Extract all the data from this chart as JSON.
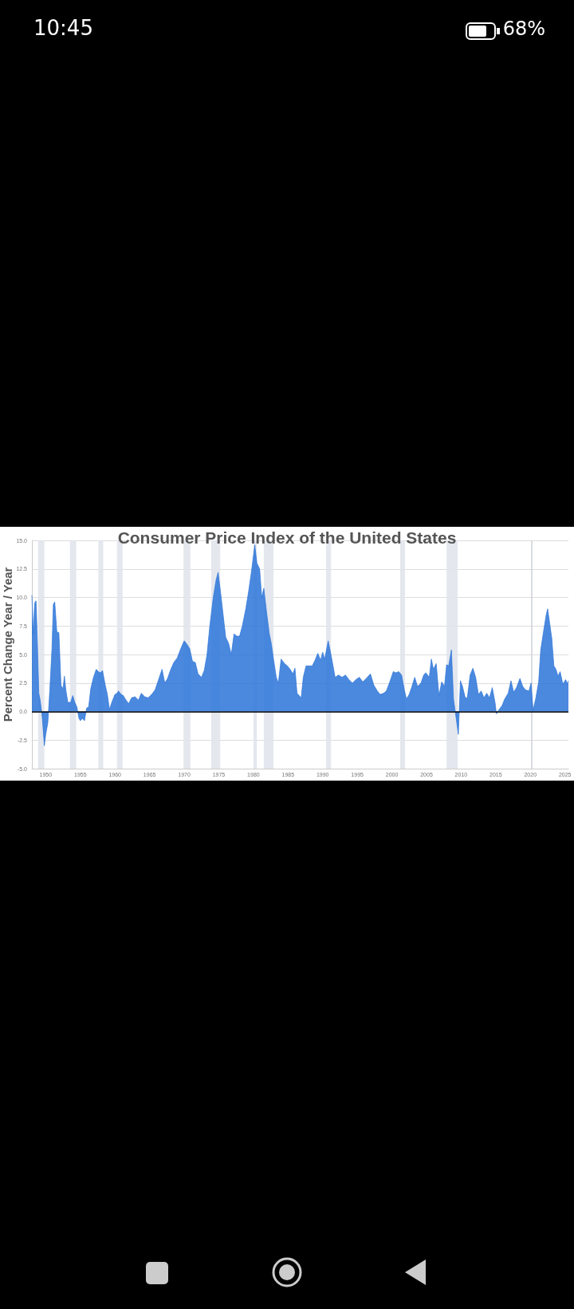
{
  "chart_data": {
    "type": "area",
    "title": "Consumer Price Index of the United States",
    "ylabel": "Percent Change Year / Year",
    "annotations": [
      "10:45",
      "68%"
    ],
    "x": [
      1948.0,
      1948.2,
      1948.4,
      1948.6,
      1948.8,
      1949.0,
      1949.2,
      1949.5,
      1949.8,
      1950.0,
      1950.3,
      1950.6,
      1950.9,
      1951.1,
      1951.3,
      1951.6,
      1951.9,
      1952.2,
      1952.5,
      1952.7,
      1952.9,
      1953.2,
      1953.6,
      1953.9,
      1954.2,
      1954.5,
      1954.8,
      1955.0,
      1955.3,
      1955.6,
      1955.9,
      1956.2,
      1956.5,
      1956.9,
      1957.3,
      1957.6,
      1957.9,
      1958.2,
      1958.6,
      1958.9,
      1959.2,
      1959.6,
      1960.0,
      1960.3,
      1960.5,
      1960.9,
      1961.2,
      1961.6,
      1962.0,
      1962.4,
      1962.9,
      1963.4,
      1963.8,
      1964.3,
      1964.8,
      1965.3,
      1965.8,
      1966.3,
      1966.8,
      1967.2,
      1967.6,
      1968.0,
      1968.5,
      1969.0,
      1969.5,
      1970.0,
      1970.4,
      1970.8,
      1971.2,
      1971.6,
      1972.0,
      1972.5,
      1972.9,
      1973.3,
      1973.7,
      1974.2,
      1974.6,
      1974.9,
      1975.3,
      1975.6,
      1976.0,
      1976.4,
      1976.8,
      1977.2,
      1977.6,
      1978.0,
      1978.4,
      1978.9,
      1979.3,
      1979.7,
      1980.2,
      1980.5,
      1980.9,
      1981.2,
      1981.5,
      1981.9,
      1982.3,
      1982.6,
      1982.9,
      1983.3,
      1983.6,
      1984.0,
      1984.5,
      1984.9,
      1985.3,
      1985.7,
      1986.0,
      1986.3,
      1986.9,
      1987.2,
      1987.6,
      1988.0,
      1988.5,
      1988.9,
      1989.3,
      1989.7,
      1990.0,
      1990.3,
      1990.8,
      1991.1,
      1991.5,
      1991.8,
      1992.3,
      1992.8,
      1993.3,
      1993.8,
      1994.3,
      1994.8,
      1995.3,
      1995.8,
      1996.3,
      1996.9,
      1997.4,
      1997.9,
      1998.3,
      1998.8,
      1999.2,
      1999.7,
      2000.2,
      2000.6,
      2001.0,
      2001.4,
      2001.8,
      2002.1,
      2002.5,
      2002.9,
      2003.3,
      2003.7,
      2004.2,
      2004.6,
      2004.9,
      2005.4,
      2005.7,
      2006.0,
      2006.4,
      2006.8,
      2007.2,
      2007.6,
      2007.9,
      2008.2,
      2008.6,
      2008.9,
      2009.2,
      2009.6,
      2009.9,
      2010.2,
      2010.6,
      2010.9,
      2011.3,
      2011.7,
      2012.1,
      2012.5,
      2012.9,
      2013.3,
      2013.7,
      2014.1,
      2014.5,
      2014.9,
      2015.1,
      2015.5,
      2015.9,
      2016.3,
      2016.8,
      2017.2,
      2017.6,
      2018.0,
      2018.5,
      2018.9,
      2019.3,
      2019.8,
      2020.1,
      2020.4,
      2020.8,
      2021.2,
      2021.5,
      2021.9,
      2022.3,
      2022.5,
      2022.8,
      2023.1,
      2023.4,
      2023.7,
      2024.0,
      2024.3,
      2024.7,
      2025.1,
      2025.4,
      2025.5
    ],
    "series": [
      {
        "color": "#2b74d9",
        "values": [
          10.2,
          6.8,
          9.5,
          9.7,
          6.0,
          1.6,
          1.0,
          -0.5,
          -3.0,
          -2.0,
          -1.0,
          2.0,
          5.5,
          9.4,
          9.6,
          7.0,
          6.9,
          2.3,
          2.0,
          3.1,
          1.9,
          0.8,
          0.8,
          1.4,
          0.8,
          0.4,
          -0.6,
          -0.8,
          -0.6,
          -0.8,
          0.3,
          0.4,
          2.0,
          3.0,
          3.7,
          3.5,
          3.4,
          3.6,
          2.3,
          1.5,
          0.2,
          0.9,
          1.5,
          1.6,
          1.8,
          1.5,
          1.4,
          1.0,
          0.7,
          1.2,
          1.3,
          1.0,
          1.6,
          1.3,
          1.2,
          1.5,
          1.9,
          2.8,
          3.7,
          2.5,
          2.9,
          3.6,
          4.3,
          4.7,
          5.5,
          6.2,
          5.9,
          5.5,
          4.4,
          4.3,
          3.3,
          3.0,
          3.6,
          5.0,
          7.5,
          10.0,
          11.5,
          12.2,
          10.2,
          8.6,
          6.5,
          6.0,
          5.0,
          6.8,
          6.6,
          6.6,
          7.5,
          9.0,
          10.5,
          12.2,
          14.6,
          13.0,
          12.5,
          10.0,
          10.8,
          8.7,
          6.8,
          5.9,
          4.6,
          3.0,
          2.5,
          4.6,
          4.2,
          4.0,
          3.7,
          3.3,
          3.8,
          1.6,
          1.2,
          3.0,
          4.0,
          4.0,
          4.0,
          4.5,
          5.1,
          4.5,
          5.2,
          4.6,
          6.2,
          5.3,
          4.0,
          3.0,
          3.2,
          3.0,
          3.2,
          2.8,
          2.5,
          2.8,
          3.0,
          2.6,
          2.9,
          3.3,
          2.3,
          1.8,
          1.5,
          1.6,
          1.8,
          2.6,
          3.5,
          3.4,
          3.5,
          3.2,
          1.9,
          1.1,
          1.5,
          2.2,
          3.0,
          2.2,
          2.5,
          3.2,
          3.4,
          3.0,
          4.6,
          3.7,
          4.2,
          1.4,
          2.6,
          2.2,
          4.1,
          4.0,
          5.4,
          1.1,
          -0.2,
          -2.0,
          2.7,
          2.2,
          1.2,
          1.2,
          3.2,
          3.8,
          3.0,
          1.5,
          1.8,
          1.2,
          1.6,
          1.2,
          2.1,
          0.8,
          -0.2,
          0.2,
          0.5,
          1.1,
          1.6,
          2.7,
          1.7,
          2.1,
          2.9,
          2.2,
          1.9,
          1.8,
          2.5,
          0.1,
          1.2,
          2.6,
          5.4,
          7.0,
          8.5,
          9.0,
          7.7,
          6.4,
          4.0,
          3.7,
          3.1,
          3.5,
          2.4,
          2.8,
          2.4,
          2.7
        ]
      }
    ],
    "xlim": [
      1948,
      2025.5
    ],
    "xticks": [
      1950,
      1955,
      1960,
      1965,
      1970,
      1975,
      1980,
      1985,
      1990,
      1995,
      2000,
      2005,
      2010,
      2015,
      2020,
      2025
    ],
    "ylim": [
      -5,
      15
    ],
    "yticks": [
      {
        "value": -5,
        "label": "-5.0"
      },
      {
        "value": -2.5,
        "label": "-2.5"
      },
      {
        "value": 0,
        "label": "0.0"
      },
      {
        "value": 2.5,
        "label": "2.5"
      },
      {
        "value": 5,
        "label": "5.0"
      },
      {
        "value": 7.5,
        "label": "7.5"
      },
      {
        "value": 10,
        "label": "10.0"
      },
      {
        "value": 12.5,
        "label": "12.5"
      },
      {
        "value": 15,
        "label": "15.0"
      }
    ],
    "grid": "y",
    "marker": "none",
    "ref_lines": [
      {
        "axis": "y",
        "value": 0,
        "color": "#000000"
      }
    ],
    "bands": [
      {
        "axis": "x",
        "from": 1948.9,
        "to": 1949.8,
        "color": "#e1e4ec"
      },
      {
        "axis": "x",
        "from": 1953.5,
        "to": 1954.4,
        "color": "#e1e4ec"
      },
      {
        "axis": "x",
        "from": 1957.6,
        "to": 1958.3,
        "color": "#e1e4ec"
      },
      {
        "axis": "x",
        "from": 1960.3,
        "to": 1961.1,
        "color": "#e1e4ec"
      },
      {
        "axis": "x",
        "from": 1969.9,
        "to": 1970.9,
        "color": "#e1e4ec"
      },
      {
        "axis": "x",
        "from": 1973.9,
        "to": 1975.2,
        "color": "#e1e4ec"
      },
      {
        "axis": "x",
        "from": 1980.0,
        "to": 1980.5,
        "color": "#e1e4ec"
      },
      {
        "axis": "x",
        "from": 1981.5,
        "to": 1982.9,
        "color": "#e1e4ec"
      },
      {
        "axis": "x",
        "from": 1990.5,
        "to": 1991.2,
        "color": "#e1e4ec"
      },
      {
        "axis": "x",
        "from": 2001.2,
        "to": 2001.9,
        "color": "#e1e4ec"
      },
      {
        "axis": "x",
        "from": 2007.9,
        "to": 2009.5,
        "color": "#e1e4ec"
      },
      {
        "axis": "x",
        "from": 2020.1,
        "to": 2020.3,
        "color": "#d0d3da"
      }
    ]
  }
}
